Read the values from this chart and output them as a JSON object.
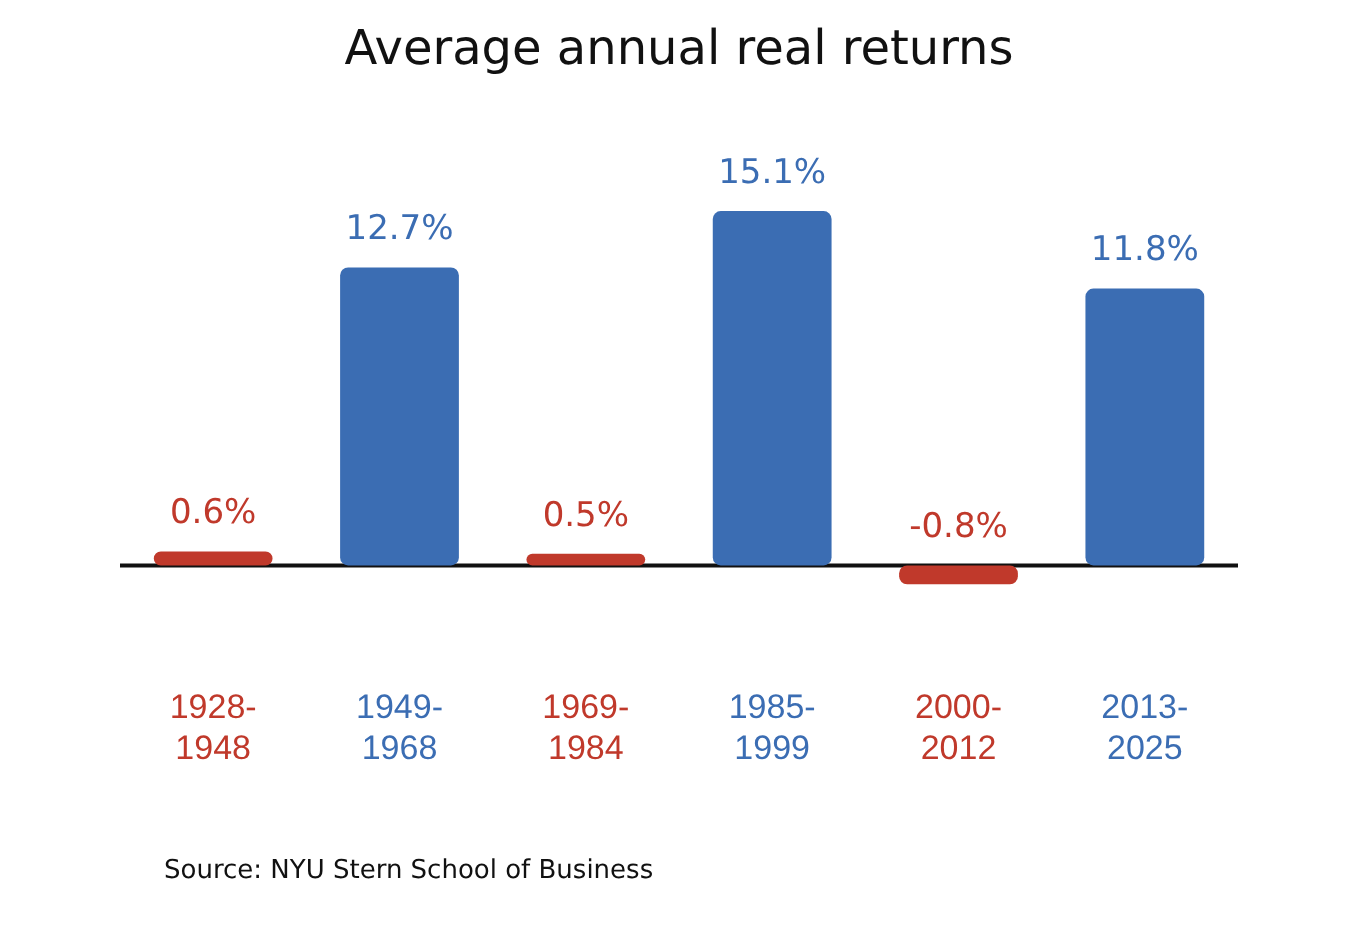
{
  "chart_data": {
    "type": "bar",
    "title": "Average annual real returns",
    "categories": [
      "1928-1948",
      "1949-1968",
      "1969-1984",
      "1985-1999",
      "2000-2012",
      "2013-2025"
    ],
    "values": [
      0.6,
      12.7,
      0.5,
      15.1,
      -0.8,
      11.8
    ],
    "value_labels": [
      "0.6%",
      "12.7%",
      "0.5%",
      "15.1%",
      "-0.8%",
      "11.8%"
    ],
    "colors": [
      "#c0392b",
      "#3b6db3",
      "#c0392b",
      "#3b6db3",
      "#c0392b",
      "#3b6db3"
    ],
    "annotations": [
      "Source: NYU Stern School of Business"
    ]
  }
}
